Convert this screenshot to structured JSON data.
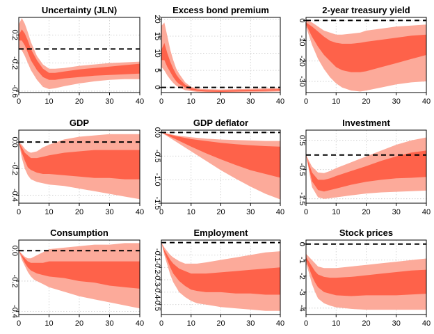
{
  "colors": {
    "outer_band": "#fcaa9a",
    "inner_band": "#fe624a",
    "zero_line": "#000000",
    "grid": "#c8c8c8"
  },
  "chart_data": [
    {
      "type": "area",
      "title": "Uncertainty (JLN)",
      "xlim": [
        0,
        40
      ],
      "ylim": [
        -0.62,
        0.45
      ],
      "xticks": [
        "0",
        "10",
        "20",
        "30",
        "40"
      ],
      "xtick_values": [
        0,
        10,
        20,
        30,
        40
      ],
      "yticks": [
        "-0.6",
        "-0.2",
        "0.2"
      ],
      "ytick_values": [
        -0.6,
        -0.2,
        0.2
      ],
      "x": [
        0,
        1,
        2,
        3,
        4,
        6,
        8,
        10,
        12,
        15,
        20,
        25,
        30,
        35,
        40
      ],
      "outer_upper": [
        0.35,
        0.44,
        0.36,
        0.24,
        0.1,
        -0.1,
        -0.22,
        -0.28,
        -0.28,
        -0.27,
        -0.24,
        -0.22,
        -0.2,
        -0.19,
        -0.18
      ],
      "inner_upper": [
        0.2,
        0.28,
        0.22,
        0.12,
        0.0,
        -0.16,
        -0.28,
        -0.34,
        -0.34,
        -0.32,
        -0.29,
        -0.27,
        -0.25,
        -0.23,
        -0.21
      ],
      "inner_lower": [
        0.12,
        0.12,
        0.05,
        -0.05,
        -0.16,
        -0.3,
        -0.4,
        -0.44,
        -0.44,
        -0.42,
        -0.4,
        -0.38,
        -0.37,
        -0.36,
        -0.35
      ],
      "outer_lower": [
        0.0,
        -0.02,
        -0.1,
        -0.2,
        -0.3,
        -0.44,
        -0.54,
        -0.57,
        -0.56,
        -0.53,
        -0.49,
        -0.46,
        -0.44,
        -0.43,
        -0.43
      ]
    },
    {
      "type": "area",
      "title": "Excess bond premium",
      "xlim": [
        0,
        40
      ],
      "ylim": [
        -1.5,
        20.5
      ],
      "xticks": [
        "0",
        "10",
        "20",
        "30",
        "40"
      ],
      "xtick_values": [
        0,
        10,
        20,
        30,
        40
      ],
      "yticks": [
        "0",
        "5",
        "10",
        "15",
        "20"
      ],
      "ytick_values": [
        0,
        5,
        10,
        15,
        20
      ],
      "x": [
        0,
        1,
        2,
        3,
        4,
        5,
        6,
        8,
        10,
        12,
        15,
        20,
        25,
        30,
        35,
        40
      ],
      "outer_upper": [
        18,
        19,
        15,
        11,
        8,
        5.5,
        4,
        1.5,
        0.2,
        -0.3,
        -0.5,
        -0.6,
        -0.5,
        -0.4,
        -0.3,
        -0.2
      ],
      "inner_upper": [
        11,
        13,
        10,
        7.5,
        5.5,
        3.8,
        2.6,
        0.8,
        -0.2,
        -0.6,
        -0.8,
        -0.9,
        -0.8,
        -0.7,
        -0.6,
        -0.5
      ],
      "inner_lower": [
        8,
        8,
        6,
        4.5,
        3,
        1.8,
        1,
        0,
        -0.7,
        -1,
        -1.2,
        -1.3,
        -1.2,
        -1.1,
        -1.0,
        -0.9
      ],
      "outer_lower": [
        6,
        5,
        3.5,
        2.3,
        1.3,
        0.5,
        0,
        -0.8,
        -1.1,
        -1.3,
        -1.5,
        -1.6,
        -1.5,
        -1.4,
        -1.3,
        -1.2
      ]
    },
    {
      "type": "area",
      "title": "2-year treasury yield",
      "xlim": [
        0,
        40
      ],
      "ylim": [
        -35.5,
        1.5
      ],
      "xticks": [
        "0",
        "10",
        "20",
        "30",
        "40"
      ],
      "xtick_values": [
        0,
        10,
        20,
        30,
        40
      ],
      "yticks": [
        "0",
        "-10",
        "-20",
        "-30"
      ],
      "ytick_values": [
        0,
        -10,
        -20,
        -30
      ],
      "x": [
        0,
        2,
        4,
        6,
        8,
        10,
        12,
        15,
        18,
        20,
        25,
        30,
        35,
        40
      ],
      "outer_upper": [
        0,
        -1,
        -3,
        -5,
        -6,
        -7,
        -7,
        -6.5,
        -6,
        -5,
        -4,
        -3,
        -2.5,
        -2
      ],
      "inner_upper": [
        -1,
        -3,
        -5.5,
        -8,
        -10,
        -11,
        -11.5,
        -11.5,
        -11,
        -10.5,
        -9.5,
        -8.5,
        -7.5,
        -7
      ],
      "inner_lower": [
        -2,
        -8,
        -13,
        -17,
        -20,
        -23,
        -24.5,
        -25.5,
        -25.5,
        -25,
        -23,
        -21,
        -19,
        -17
      ],
      "outer_lower": [
        -3,
        -12,
        -19,
        -24,
        -28,
        -31,
        -33,
        -34.5,
        -35,
        -34.5,
        -33,
        -31.5,
        -30.5,
        -30
      ]
    },
    {
      "type": "area",
      "title": "GDP",
      "xlim": [
        0,
        40
      ],
      "ylim": [
        -0.46,
        0.09
      ],
      "xticks": [
        "0",
        "10",
        "20",
        "30",
        "40"
      ],
      "xtick_values": [
        0,
        10,
        20,
        30,
        40
      ],
      "yticks": [
        "-0.4",
        "-0.2",
        "0.0"
      ],
      "ytick_values": [
        -0.4,
        -0.2,
        0.0
      ],
      "x": [
        0,
        1,
        2,
        3,
        4,
        6,
        8,
        10,
        15,
        20,
        25,
        30,
        35,
        40
      ],
      "outer_upper": [
        0,
        -0.02,
        -0.05,
        -0.07,
        -0.08,
        -0.07,
        -0.04,
        -0.02,
        0.02,
        0.04,
        0.05,
        0.06,
        0.06,
        0.06
      ],
      "inner_upper": [
        0,
        -0.04,
        -0.08,
        -0.1,
        -0.12,
        -0.12,
        -0.11,
        -0.1,
        -0.08,
        -0.07,
        -0.06,
        -0.06,
        -0.06,
        -0.06
      ],
      "inner_lower": [
        0,
        -0.08,
        -0.14,
        -0.19,
        -0.21,
        -0.23,
        -0.24,
        -0.24,
        -0.25,
        -0.26,
        -0.27,
        -0.27,
        -0.28,
        -0.28
      ],
      "outer_lower": [
        0,
        -0.12,
        -0.2,
        -0.25,
        -0.28,
        -0.3,
        -0.31,
        -0.32,
        -0.33,
        -0.35,
        -0.37,
        -0.39,
        -0.41,
        -0.43
      ]
    },
    {
      "type": "area",
      "title": "GDP deflator",
      "xlim": [
        0,
        40
      ],
      "ylim": [
        -1.5,
        0.05
      ],
      "xticks": [
        "0",
        "10",
        "20",
        "30",
        "40"
      ],
      "xtick_values": [
        0,
        10,
        20,
        30,
        40
      ],
      "yticks": [
        "0.0",
        "-0.5",
        "-1.0",
        "-1.5"
      ],
      "ytick_values": [
        0,
        -0.5,
        -1.0,
        -1.5
      ],
      "x": [
        0,
        5,
        10,
        15,
        20,
        25,
        30,
        35,
        40
      ],
      "outer_upper": [
        0,
        -0.06,
        -0.1,
        -0.13,
        -0.15,
        -0.16,
        -0.17,
        -0.18,
        -0.18
      ],
      "inner_upper": [
        0,
        -0.08,
        -0.14,
        -0.18,
        -0.22,
        -0.25,
        -0.27,
        -0.29,
        -0.3
      ],
      "inner_lower": [
        0,
        -0.15,
        -0.3,
        -0.44,
        -0.57,
        -0.69,
        -0.8,
        -0.88,
        -0.96
      ],
      "outer_lower": [
        0,
        -0.2,
        -0.4,
        -0.6,
        -0.8,
        -0.98,
        -1.15,
        -1.3,
        -1.42
      ]
    },
    {
      "type": "area",
      "title": "Investment",
      "xlim": [
        0,
        40
      ],
      "ylim": [
        -1.65,
        0.85
      ],
      "xticks": [
        "0",
        "10",
        "20",
        "30",
        "40"
      ],
      "xtick_values": [
        0,
        10,
        20,
        30,
        40
      ],
      "yticks": [
        "-1.5",
        "-0.5",
        "0.5"
      ],
      "ytick_values": [
        -1.5,
        -0.5,
        0.5
      ],
      "x": [
        0,
        2,
        4,
        6,
        8,
        10,
        15,
        20,
        25,
        30,
        35,
        40
      ],
      "outer_upper": [
        0,
        -0.4,
        -0.6,
        -0.62,
        -0.55,
        -0.45,
        -0.25,
        -0.05,
        0.15,
        0.35,
        0.5,
        0.6
      ],
      "inner_upper": [
        0,
        -0.6,
        -0.85,
        -0.85,
        -0.8,
        -0.72,
        -0.55,
        -0.38,
        -0.2,
        -0.05,
        0.08,
        0.15
      ],
      "inner_lower": [
        0,
        -0.9,
        -1.2,
        -1.25,
        -1.2,
        -1.15,
        -1.02,
        -0.92,
        -0.85,
        -0.8,
        -0.78,
        -0.75
      ],
      "outer_lower": [
        0,
        -1.1,
        -1.45,
        -1.5,
        -1.48,
        -1.45,
        -1.38,
        -1.32,
        -1.28,
        -1.26,
        -1.24,
        -1.22
      ]
    },
    {
      "type": "area",
      "title": "Consumption",
      "xlim": [
        0,
        40
      ],
      "ylim": [
        -0.42,
        0.07
      ],
      "xticks": [
        "0",
        "10",
        "20",
        "30",
        "40"
      ],
      "xtick_values": [
        0,
        10,
        20,
        30,
        40
      ],
      "yticks": [
        "-0.4",
        "-0.2",
        "0.0"
      ],
      "ytick_values": [
        -0.4,
        -0.2,
        0.0
      ],
      "x": [
        0,
        1,
        2,
        3,
        4,
        5,
        6,
        8,
        10,
        15,
        20,
        25,
        30,
        35,
        40
      ],
      "outer_upper": [
        0,
        -0.02,
        -0.04,
        -0.05,
        -0.05,
        -0.04,
        -0.03,
        -0.01,
        0.01,
        0.02,
        0.03,
        0.04,
        0.04,
        0.05,
        0.05
      ],
      "inner_upper": [
        0,
        -0.03,
        -0.05,
        -0.07,
        -0.08,
        -0.08,
        -0.08,
        -0.08,
        -0.07,
        -0.07,
        -0.07,
        -0.07,
        -0.07,
        -0.07,
        -0.07
      ],
      "inner_lower": [
        0,
        -0.04,
        -0.08,
        -0.11,
        -0.13,
        -0.14,
        -0.15,
        -0.16,
        -0.17,
        -0.18,
        -0.2,
        -0.21,
        -0.23,
        -0.24,
        -0.25
      ],
      "outer_lower": [
        0,
        -0.06,
        -0.1,
        -0.14,
        -0.17,
        -0.19,
        -0.2,
        -0.22,
        -0.24,
        -0.27,
        -0.3,
        -0.32,
        -0.34,
        -0.36,
        -0.38
      ]
    },
    {
      "type": "area",
      "title": "Employment",
      "xlim": [
        0,
        40
      ],
      "ylim": [
        -0.58,
        0.02
      ],
      "xticks": [
        "0",
        "10",
        "20",
        "30",
        "40"
      ],
      "xtick_values": [
        0,
        10,
        20,
        30,
        40
      ],
      "yticks": [
        "-0.1",
        "-0.2",
        "-0.3",
        "-0.4",
        "-0.5"
      ],
      "ytick_values": [
        -0.1,
        -0.2,
        -0.3,
        -0.4,
        -0.5
      ],
      "x": [
        0,
        1,
        2,
        3,
        4,
        6,
        8,
        10,
        12,
        15,
        20,
        25,
        30,
        35,
        40
      ],
      "outer_upper": [
        0,
        -0.04,
        -0.07,
        -0.1,
        -0.12,
        -0.15,
        -0.17,
        -0.17,
        -0.17,
        -0.16,
        -0.14,
        -0.12,
        -0.1,
        -0.08,
        -0.07
      ],
      "inner_upper": [
        0,
        -0.06,
        -0.1,
        -0.14,
        -0.17,
        -0.21,
        -0.23,
        -0.25,
        -0.25,
        -0.25,
        -0.24,
        -0.23,
        -0.22,
        -0.21,
        -0.2
      ],
      "inner_lower": [
        0,
        -0.08,
        -0.14,
        -0.2,
        -0.25,
        -0.31,
        -0.35,
        -0.38,
        -0.39,
        -0.4,
        -0.4,
        -0.41,
        -0.41,
        -0.42,
        -0.42
      ],
      "outer_lower": [
        0,
        -0.1,
        -0.18,
        -0.26,
        -0.32,
        -0.4,
        -0.44,
        -0.47,
        -0.49,
        -0.5,
        -0.52,
        -0.53,
        -0.54,
        -0.55,
        -0.55
      ]
    },
    {
      "type": "area",
      "title": "Stock prices",
      "xlim": [
        0,
        40
      ],
      "ylim": [
        -4.4,
        0.25
      ],
      "xticks": [
        "0",
        "10",
        "20",
        "30",
        "40"
      ],
      "xtick_values": [
        0,
        10,
        20,
        30,
        40
      ],
      "yticks": [
        "0",
        "-1",
        "-2",
        "-3",
        "-4"
      ],
      "ytick_values": [
        0,
        -1,
        -2,
        -3,
        -4
      ],
      "x": [
        0,
        1,
        2,
        3,
        4,
        6,
        8,
        10,
        15,
        20,
        25,
        30,
        35,
        40
      ],
      "outer_upper": [
        -0.6,
        -0.8,
        -1.0,
        -1.2,
        -1.4,
        -1.5,
        -1.5,
        -1.5,
        -1.4,
        -1.3,
        -1.2,
        -1.1,
        -1.0,
        -0.9
      ],
      "inner_upper": [
        -0.8,
        -1.1,
        -1.4,
        -1.7,
        -1.9,
        -2.05,
        -2.1,
        -2.1,
        -2.05,
        -1.95,
        -1.85,
        -1.75,
        -1.65,
        -1.6
      ],
      "inner_lower": [
        -1.0,
        -1.5,
        -2.0,
        -2.4,
        -2.7,
        -3.0,
        -3.1,
        -3.2,
        -3.25,
        -3.2,
        -3.2,
        -3.2,
        -3.15,
        -3.1
      ],
      "outer_lower": [
        -1.2,
        -1.8,
        -2.5,
        -3.0,
        -3.4,
        -3.7,
        -3.85,
        -3.95,
        -4.05,
        -4.1,
        -4.1,
        -4.1,
        -4.1,
        -4.1
      ]
    }
  ]
}
